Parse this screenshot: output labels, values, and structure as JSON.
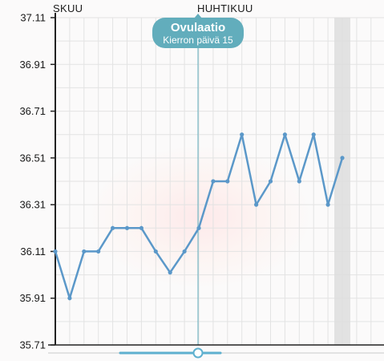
{
  "chart_data": {
    "type": "line",
    "y_ticks": [
      "37.11",
      "36.91",
      "36.71",
      "36.51",
      "36.31",
      "36.11",
      "35.91",
      "35.71"
    ],
    "ylim": [
      35.71,
      37.11
    ],
    "month_labels": [
      {
        "text": "SKUU",
        "day_index": 0
      },
      {
        "text": "HUHTIKUU",
        "day_index": 10
      }
    ],
    "values": [
      36.11,
      35.91,
      36.11,
      36.11,
      36.21,
      36.21,
      36.21,
      36.11,
      36.02,
      36.11,
      36.21,
      36.41,
      36.41,
      36.61,
      36.31,
      36.41,
      36.61,
      36.41,
      36.61,
      36.31,
      36.51
    ],
    "ovulation_index": 10,
    "highlight_index": 20,
    "ovulation_label": {
      "title": "Ovulaatio",
      "subtitle": "Kierron päivä 15"
    },
    "grid": true,
    "colors": {
      "line": "#5b98c9",
      "bubble": "#62adbc",
      "axis": "#222222",
      "grid": "#e3e3e3",
      "highlight": "#dddddd",
      "slider": "#5eb0cf"
    }
  }
}
